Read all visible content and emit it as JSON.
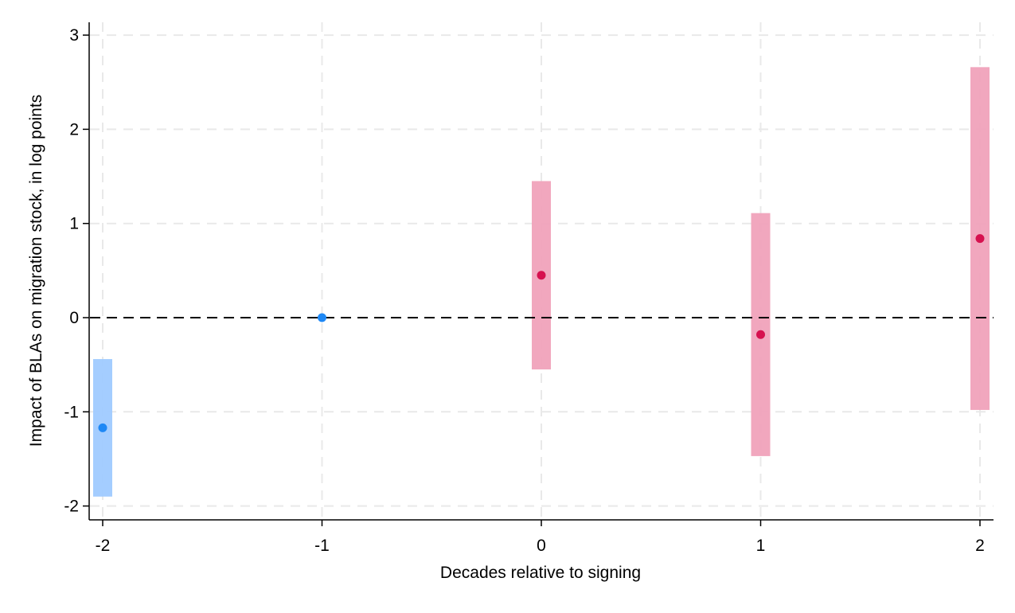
{
  "chart_data": {
    "type": "scatter",
    "title": "",
    "xlabel": "Decades relative to signing",
    "ylabel": "Impact of BLAs on migration stock, in log points",
    "xlim": [
      -2,
      2
    ],
    "ylim": [
      -2,
      3
    ],
    "x_ticks": [
      -2,
      -1,
      0,
      1,
      2
    ],
    "y_ticks": [
      -2,
      -1,
      0,
      1,
      2,
      3
    ],
    "grid": true,
    "reference_line": {
      "y": 0,
      "style": "dashed"
    },
    "legend": "none",
    "series": [
      {
        "color": "#1e88f5",
        "ci_color": "#9fcaff",
        "points": [
          {
            "x": -2,
            "y": -1.17,
            "ci_low": -1.9,
            "ci_high": -0.44
          },
          {
            "x": -1,
            "y": 0.0,
            "ci_low": null,
            "ci_high": null
          }
        ]
      },
      {
        "color": "#d6114f",
        "ci_color": "#f0a2bb",
        "points": [
          {
            "x": 0,
            "y": 0.45,
            "ci_low": -0.55,
            "ci_high": 1.45
          },
          {
            "x": 1,
            "y": -0.18,
            "ci_low": -1.47,
            "ci_high": 1.11
          },
          {
            "x": 2,
            "y": 0.84,
            "ci_low": -0.98,
            "ci_high": 2.66
          }
        ]
      }
    ]
  }
}
